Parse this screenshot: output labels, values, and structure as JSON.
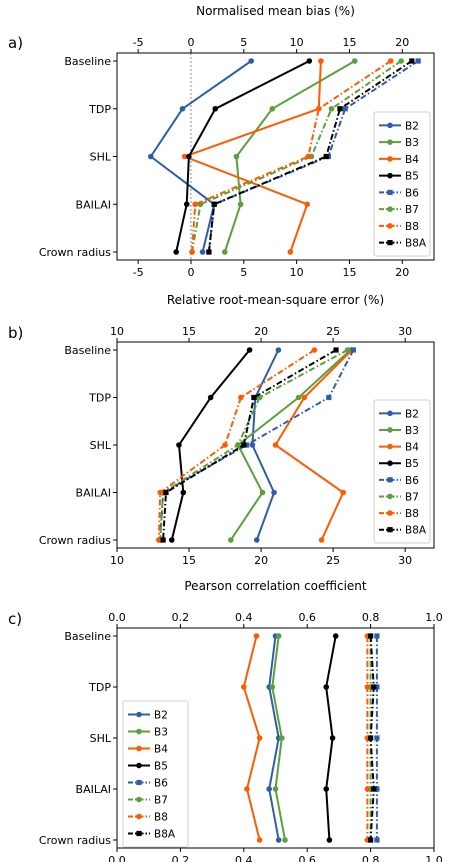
{
  "colors": {
    "B2": "#2e5ea8",
    "B3": "#5aa03c",
    "B4": "#ff5a00",
    "B5": "#000000",
    "B6": "#2e5ea8",
    "B7": "#5aa03c",
    "B8": "#ff5a00",
    "B8A": "#000000"
  },
  "chart_data": [
    {
      "type": "line",
      "panel_label": "a)",
      "title": "Normalised mean bias (%)",
      "categories": [
        "Baseline",
        "TDP",
        "SHL",
        "BAILAI",
        "Crown radius"
      ],
      "xlim": [
        -7,
        23
      ],
      "xticks_top": [
        "-5",
        "0",
        "5",
        "10",
        "15",
        "20"
      ],
      "xticks_bottom": [
        "-5",
        "0",
        "5",
        "10",
        "15",
        "20"
      ],
      "zero_line": true,
      "legend_position": "center-right",
      "series": [
        {
          "name": "B2",
          "values": [
            5.7,
            -0.8,
            -3.8,
            2.2,
            1.1
          ],
          "style": "solid",
          "marker": "circle"
        },
        {
          "name": "B3",
          "values": [
            15.5,
            7.7,
            4.3,
            4.7,
            3.2
          ],
          "style": "solid",
          "marker": "circle"
        },
        {
          "name": "B4",
          "values": [
            12.3,
            12.1,
            -0.6,
            11.0,
            9.4
          ],
          "style": "solid",
          "marker": "circle"
        },
        {
          "name": "B5",
          "values": [
            11.2,
            2.3,
            -0.2,
            -0.4,
            -1.4
          ],
          "style": "solid",
          "marker": "circle"
        },
        {
          "name": "B6",
          "values": [
            21.5,
            14.6,
            13.0,
            2.2,
            1.7
          ],
          "style": "dashdot",
          "marker": "square"
        },
        {
          "name": "B7",
          "values": [
            19.9,
            13.3,
            11.4,
            0.9,
            0.1
          ],
          "style": "dashdot",
          "marker": "circle"
        },
        {
          "name": "B8",
          "values": [
            18.9,
            12.1,
            11.1,
            0.4,
            0.1
          ],
          "style": "dashdot",
          "marker": "circle"
        },
        {
          "name": "B8A",
          "values": [
            20.9,
            14.1,
            12.8,
            2.2,
            1.7
          ],
          "style": "dashdot",
          "marker": "square"
        }
      ]
    },
    {
      "type": "line",
      "panel_label": "b)",
      "title": "Relative root-mean-square error (%)",
      "categories": [
        "Baseline",
        "TDP",
        "SHL",
        "BAILAI",
        "Crown radius"
      ],
      "xlim": [
        10,
        32
      ],
      "xticks_top": [
        "10",
        "15",
        "20",
        "25",
        "30"
      ],
      "xticks_bottom": [
        "10",
        "15",
        "20",
        "25",
        "30"
      ],
      "zero_line": false,
      "legend_position": "center-right",
      "series": [
        {
          "name": "B2",
          "values": [
            21.2,
            19.6,
            19.4,
            20.9,
            19.7
          ],
          "style": "solid",
          "marker": "circle"
        },
        {
          "name": "B3",
          "values": [
            26.2,
            22.6,
            18.4,
            20.1,
            17.9
          ],
          "style": "solid",
          "marker": "circle"
        },
        {
          "name": "B4",
          "values": [
            26.3,
            23.0,
            21.0,
            25.7,
            24.2
          ],
          "style": "solid",
          "marker": "circle"
        },
        {
          "name": "B5",
          "values": [
            19.2,
            16.5,
            14.3,
            14.6,
            13.8
          ],
          "style": "solid",
          "marker": "circle"
        },
        {
          "name": "B6",
          "values": [
            26.4,
            24.7,
            19.0,
            13.2,
            13.0
          ],
          "style": "dashdot",
          "marker": "square"
        },
        {
          "name": "B7",
          "values": [
            26.0,
            19.9,
            18.4,
            13.2,
            13.0
          ],
          "style": "dashdot",
          "marker": "circle"
        },
        {
          "name": "B8",
          "values": [
            23.7,
            18.6,
            17.5,
            13.0,
            12.9
          ],
          "style": "dashdot",
          "marker": "circle"
        },
        {
          "name": "B8A",
          "values": [
            25.2,
            19.5,
            18.8,
            13.4,
            13.2
          ],
          "style": "dashdot",
          "marker": "square"
        }
      ]
    },
    {
      "type": "line",
      "panel_label": "c)",
      "title": "Pearson correlation coefficient",
      "categories": [
        "Baseline",
        "TDP",
        "SHL",
        "BAILAI",
        "Crown radius"
      ],
      "xlim": [
        0.0,
        1.0
      ],
      "xticks_top": [
        "0.0",
        "0.2",
        "0.4",
        "0.6",
        "0.8",
        "1.0"
      ],
      "xticks_bottom": [
        "0.0",
        "0.2",
        "0.4",
        "0.6",
        "0.8",
        "1.0"
      ],
      "zero_line": false,
      "legend_position": "center-left",
      "series": [
        {
          "name": "B2",
          "values": [
            0.5,
            0.48,
            0.51,
            0.48,
            0.51
          ],
          "style": "solid",
          "marker": "circle"
        },
        {
          "name": "B3",
          "values": [
            0.51,
            0.49,
            0.52,
            0.5,
            0.53
          ],
          "style": "solid",
          "marker": "circle"
        },
        {
          "name": "B4",
          "values": [
            0.44,
            0.4,
            0.45,
            0.41,
            0.45
          ],
          "style": "solid",
          "marker": "circle"
        },
        {
          "name": "B5",
          "values": [
            0.69,
            0.66,
            0.68,
            0.66,
            0.67
          ],
          "style": "solid",
          "marker": "circle"
        },
        {
          "name": "B6",
          "values": [
            0.82,
            0.82,
            0.82,
            0.82,
            0.82
          ],
          "style": "dashdot",
          "marker": "square"
        },
        {
          "name": "B7",
          "values": [
            0.8,
            0.8,
            0.8,
            0.8,
            0.8
          ],
          "style": "dashdot",
          "marker": "circle"
        },
        {
          "name": "B8",
          "values": [
            0.79,
            0.79,
            0.79,
            0.79,
            0.79
          ],
          "style": "dashdot",
          "marker": "circle"
        },
        {
          "name": "B8A",
          "values": [
            0.8,
            0.81,
            0.8,
            0.81,
            0.8
          ],
          "style": "dashdot",
          "marker": "square"
        }
      ]
    }
  ]
}
